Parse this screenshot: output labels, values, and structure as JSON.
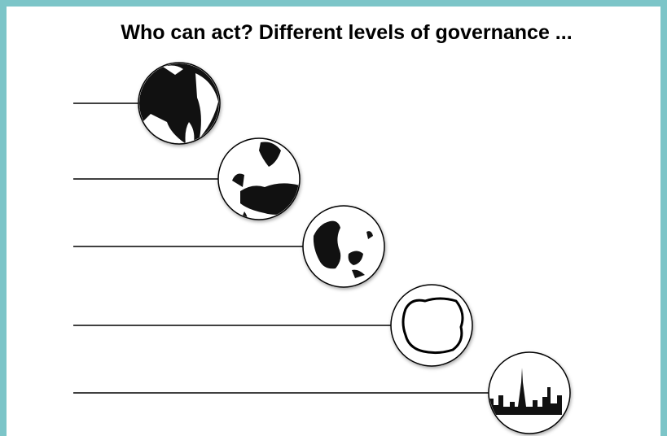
{
  "header": {
    "title": "Who can act? Different levels of governance ..."
  }
}
